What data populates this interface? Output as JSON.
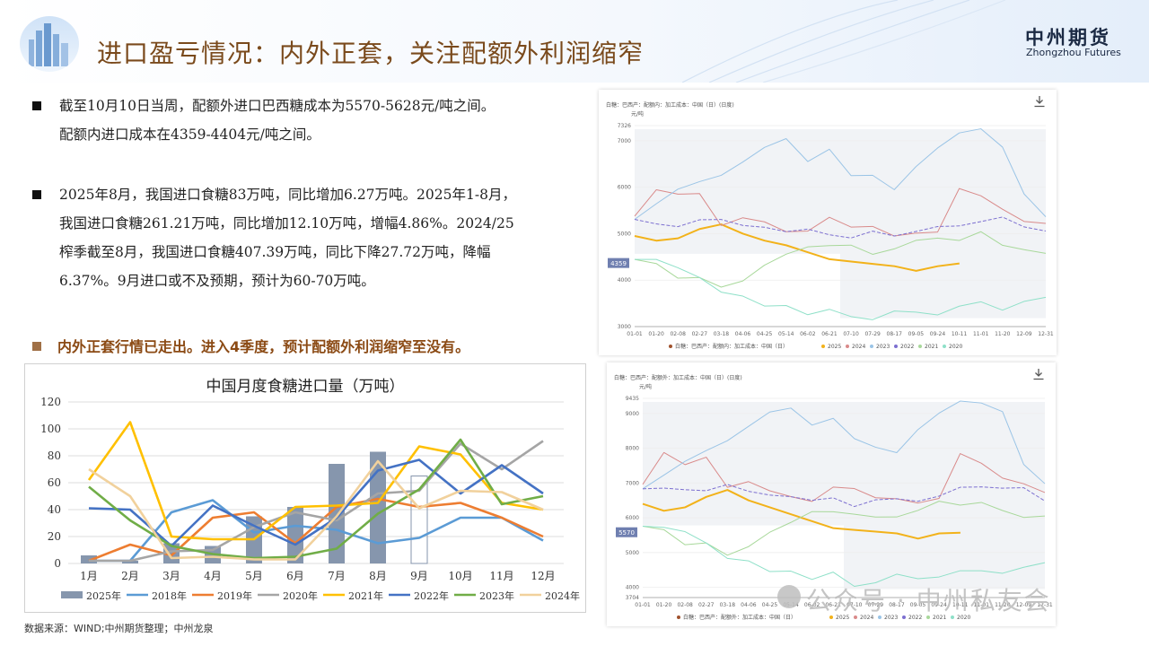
{
  "header": {
    "title": "进口盈亏情况：内外正套，关注配额外利润缩窄",
    "brand_cn": "中州期货",
    "brand_en": "Zhongzhou Futures"
  },
  "bullets": [
    {
      "lines": [
        "截至10月10日当周，配额外进口巴西糖成本为5570-5628元/吨之间。",
        "配额内进口成本在4359-4404元/吨之间。"
      ]
    },
    {
      "lines": [
        "2025年8月，我国进口食糖83万吨，同比增加6.27万吨。2025年1-8月，",
        "我国进口食糖261.21万吨，同比增加12.10万吨，增幅4.86%。2024/25",
        "榨季截至8月，我国进口食糖407.39万吨，同比下降27.72万吨，降幅",
        "6.37%。9月进口或不及预期，预计为60-70万吨。"
      ]
    }
  ],
  "highlight": "内外正套行情已走出。进入4季度，预计配额外利润缩窄至没有。",
  "source": "数据来源：WIND;中州期货整理；中州龙泉",
  "watermark": "公众号 · 中州私友会",
  "chart_data": [
    {
      "type": "bar+line",
      "title": "中国月度食糖进口量（万吨）",
      "categories": [
        "1月",
        "2月",
        "3月",
        "4月",
        "5月",
        "6月",
        "7月",
        "8月",
        "9月",
        "10月",
        "11月",
        "12月"
      ],
      "ylim": [
        0,
        120
      ],
      "yticks": [
        0,
        20,
        40,
        60,
        80,
        100,
        120
      ],
      "legend_position": "bottom",
      "bar_series": {
        "name": "2025年",
        "color": "#8696ad",
        "values": [
          6,
          2,
          15,
          13,
          35,
          42,
          74,
          83,
          null,
          null,
          null,
          null
        ]
      },
      "forecast_bar": {
        "category": "9月",
        "value": 65
      },
      "line_series": [
        {
          "name": "2018年",
          "color": "#5b9bd5",
          "values": [
            2,
            2,
            38,
            47,
            23,
            28,
            25,
            15,
            19,
            34,
            34,
            17
          ]
        },
        {
          "name": "2019年",
          "color": "#ed7d31",
          "values": [
            2,
            14,
            6,
            34,
            38,
            15,
            42,
            48,
            42,
            45,
            34,
            20
          ]
        },
        {
          "name": "2020年",
          "color": "#a5a5a5",
          "values": [
            2,
            2,
            9,
            10,
            27,
            38,
            32,
            52,
            54,
            89,
            70,
            91
          ]
        },
        {
          "name": "2021年",
          "color": "#ffc000",
          "values": [
            62,
            105,
            20,
            18,
            18,
            42,
            43,
            45,
            87,
            81,
            45,
            40
          ]
        },
        {
          "name": "2022年",
          "color": "#4472c4",
          "values": [
            41,
            40,
            13,
            43,
            28,
            14,
            34,
            69,
            77,
            52,
            73,
            52
          ]
        },
        {
          "name": "2023年",
          "color": "#70ad47",
          "values": [
            57,
            32,
            13,
            7,
            4,
            5,
            11,
            37,
            55,
            92,
            44,
            50
          ]
        },
        {
          "name": "2024年",
          "color": "#f1d19c",
          "values": [
            70,
            50,
            4,
            5,
            3,
            3,
            35,
            76,
            41,
            54,
            53,
            40
          ]
        }
      ]
    },
    {
      "type": "line",
      "subtitle": "白糖：巴西产：配额内：加工成本：中国（日）(日度)",
      "ylabel": "元/吨",
      "ylim": [
        3000,
        7326
      ],
      "yticks": [
        3000,
        4000,
        5000,
        6000,
        7000,
        7326
      ],
      "marker_label": "4359",
      "x_ticks": [
        "01-01",
        "01-20",
        "02-08",
        "02-27",
        "03-18",
        "04-06",
        "04-25",
        "05-14",
        "06-02",
        "06-21",
        "07-10",
        "07-29",
        "08-17",
        "09-05",
        "09-24",
        "10-11",
        "11-01",
        "11-20",
        "12-09",
        "12-31"
      ],
      "legend_position": "bottom",
      "legend": [
        "白糖：巴西产：配额内：加工成本：中国（日）",
        "2025",
        "2024",
        "2023",
        "2022",
        "2021",
        "2020"
      ],
      "series": [
        {
          "name": "2025",
          "color": "#f2b21a",
          "values": [
            4950,
            4850,
            4900,
            5100,
            5200,
            5000,
            4850,
            4750,
            4600,
            4450,
            4400,
            4350,
            4300,
            4200,
            4300,
            4359
          ]
        },
        {
          "name": "2024",
          "color": "#d98a8a",
          "values": [
            5400,
            6000,
            5800,
            5900,
            5200,
            5400,
            5200,
            5100,
            5000,
            5300,
            5200,
            5100,
            5000,
            5000,
            5000,
            6000,
            5800,
            5500,
            5300,
            5200
          ]
        },
        {
          "name": "2023",
          "color": "#9ac4e6",
          "values": [
            5300,
            5600,
            5900,
            6100,
            6300,
            6600,
            6900,
            7000,
            6600,
            6800,
            6300,
            6200,
            6000,
            6500,
            6900,
            7200,
            7200,
            6900,
            5800,
            5400
          ]
        },
        {
          "name": "2022",
          "color": "#7c6fd0",
          "values": [
            5300,
            5200,
            5200,
            5250,
            5300,
            5200,
            5100,
            5100,
            5050,
            5000,
            4900,
            5000,
            5000,
            5050,
            5100,
            5200,
            5300,
            5300,
            5200,
            5000
          ]
        },
        {
          "name": "2021",
          "color": "#a8d89a",
          "values": [
            4500,
            4300,
            4100,
            4000,
            3900,
            4000,
            4300,
            4500,
            4700,
            4800,
            4700,
            4600,
            4700,
            4800,
            4900,
            4900,
            5000,
            4800,
            4600,
            4600
          ]
        },
        {
          "name": "2020",
          "color": "#8ee0c8",
          "values": [
            4500,
            4400,
            4300,
            4000,
            3800,
            3600,
            3500,
            3400,
            3300,
            3400,
            3200,
            3200,
            3300,
            3300,
            3300,
            3400,
            3500,
            3400,
            3500,
            3600
          ]
        }
      ]
    },
    {
      "type": "line",
      "subtitle": "白糖：巴西产：配额外：加工成本：中国（日）(日度)",
      "ylabel": "元/吨",
      "ylim": [
        3704,
        9435
      ],
      "yticks": [
        3704,
        4000,
        5000,
        6000,
        7000,
        8000,
        9000,
        9435
      ],
      "marker_label": "5570",
      "x_ticks": [
        "01-01",
        "01-20",
        "02-08",
        "02-27",
        "03-18",
        "04-06",
        "04-25",
        "05-14",
        "06-02",
        "06-21",
        "07-10",
        "07-29",
        "08-17",
        "09-05",
        "09-24",
        "10-11",
        "11-01",
        "11-20",
        "12-09",
        "12-31"
      ],
      "legend_position": "bottom",
      "legend": [
        "白糖：巴西产：配额外：加工成本：中国（日）",
        "2025",
        "2024",
        "2023",
        "2022",
        "2021",
        "2020"
      ],
      "series": [
        {
          "name": "2025",
          "color": "#f2b21a",
          "values": [
            6400,
            6200,
            6300,
            6600,
            6800,
            6500,
            6300,
            6100,
            5900,
            5700,
            5650,
            5600,
            5550,
            5400,
            5550,
            5570
          ]
        },
        {
          "name": "2024",
          "color": "#d98a8a",
          "values": [
            7000,
            7800,
            7600,
            7700,
            6800,
            7000,
            6800,
            6600,
            6500,
            6900,
            6800,
            6600,
            6500,
            6500,
            6500,
            7800,
            7600,
            7200,
            6900,
            6800
          ]
        },
        {
          "name": "2023",
          "color": "#9ac4e6",
          "values": [
            6900,
            7300,
            7700,
            8000,
            8200,
            8600,
            9000,
            9100,
            8600,
            8800,
            8200,
            8100,
            7800,
            8500,
            9000,
            9300,
            9300,
            9000,
            7600,
            7000
          ]
        },
        {
          "name": "2022",
          "color": "#7c6fd0",
          "values": [
            6900,
            6800,
            6800,
            6850,
            6900,
            6800,
            6600,
            6600,
            6550,
            6500,
            6400,
            6500,
            6500,
            6550,
            6600,
            6800,
            6900,
            6900,
            6800,
            6500
          ]
        },
        {
          "name": "2021",
          "color": "#a8d89a",
          "values": [
            5800,
            5600,
            5300,
            5200,
            5000,
            5200,
            5600,
            5800,
            6100,
            6200,
            6100,
            6000,
            6100,
            6200,
            6400,
            6400,
            6500,
            6200,
            6000,
            6000
          ]
        },
        {
          "name": "2020",
          "color": "#8ee0c8",
          "values": [
            5800,
            5700,
            5600,
            5200,
            4900,
            4700,
            4500,
            4400,
            4300,
            4400,
            4100,
            4100,
            4300,
            4300,
            4300,
            4400,
            4500,
            4400,
            4500,
            4700
          ]
        }
      ]
    }
  ]
}
